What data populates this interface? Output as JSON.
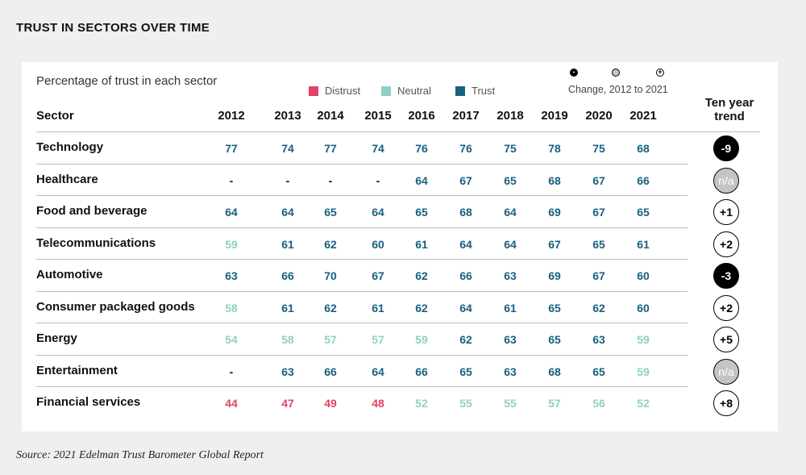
{
  "page": {
    "title": "TRUST IN SECTORS OVER TIME",
    "source": "Source: 2021 Edelman Trust Barometer Global Report"
  },
  "colors": {
    "distrust": "#e04367",
    "neutral": "#8fd0c6",
    "trust": "#17617e",
    "negative_fill": "#000000",
    "na_fill": "#c4c4c4"
  },
  "chart_data": {
    "type": "table",
    "title": "Percentage of trust in each sector",
    "legend": [
      {
        "key": "distrust",
        "label": "Distrust"
      },
      {
        "key": "neutral",
        "label": "Neutral"
      },
      {
        "key": "trust",
        "label": "Trust"
      }
    ],
    "change_legend_label": "Change, 2012 to 2021",
    "change_legend_symbols": [
      "-",
      "",
      "+"
    ],
    "sector_header": "Sector",
    "trend_header": [
      "Ten year",
      "trend"
    ],
    "years": [
      "2012",
      "2013",
      "2014",
      "2015",
      "2016",
      "2017",
      "2018",
      "2019",
      "2020",
      "2021"
    ],
    "rows": [
      {
        "sector": "Technology",
        "values": [
          77,
          74,
          77,
          74,
          76,
          76,
          75,
          78,
          75,
          68
        ],
        "categories": [
          "trust",
          "trust",
          "trust",
          "trust",
          "trust",
          "trust",
          "trust",
          "trust",
          "trust",
          "trust"
        ],
        "trend": "-9",
        "trend_kind": "negative"
      },
      {
        "sector": "Healthcare",
        "values": [
          null,
          null,
          null,
          null,
          64,
          67,
          65,
          68,
          67,
          66
        ],
        "categories": [
          "none",
          "none",
          "none",
          "none",
          "trust",
          "trust",
          "trust",
          "trust",
          "trust",
          "trust"
        ],
        "trend": "n/a",
        "trend_kind": "na"
      },
      {
        "sector": "Food and beverage",
        "values": [
          64,
          64,
          65,
          64,
          65,
          68,
          64,
          69,
          67,
          65
        ],
        "categories": [
          "trust",
          "trust",
          "trust",
          "trust",
          "trust",
          "trust",
          "trust",
          "trust",
          "trust",
          "trust"
        ],
        "trend": "+1",
        "trend_kind": "positive"
      },
      {
        "sector": "Telecommunications",
        "values": [
          59,
          61,
          62,
          60,
          61,
          64,
          64,
          67,
          65,
          61
        ],
        "categories": [
          "neutral",
          "trust",
          "trust",
          "trust",
          "trust",
          "trust",
          "trust",
          "trust",
          "trust",
          "trust"
        ],
        "trend": "+2",
        "trend_kind": "positive"
      },
      {
        "sector": "Automotive",
        "values": [
          63,
          66,
          70,
          67,
          62,
          66,
          63,
          69,
          67,
          60
        ],
        "categories": [
          "trust",
          "trust",
          "trust",
          "trust",
          "trust",
          "trust",
          "trust",
          "trust",
          "trust",
          "trust"
        ],
        "trend": "-3",
        "trend_kind": "negative"
      },
      {
        "sector": "Consumer packaged goods",
        "values": [
          58,
          61,
          62,
          61,
          62,
          64,
          61,
          65,
          62,
          60
        ],
        "categories": [
          "neutral",
          "trust",
          "trust",
          "trust",
          "trust",
          "trust",
          "trust",
          "trust",
          "trust",
          "trust"
        ],
        "trend": "+2",
        "trend_kind": "positive"
      },
      {
        "sector": "Energy",
        "values": [
          54,
          58,
          57,
          57,
          59,
          62,
          63,
          65,
          63,
          59
        ],
        "categories": [
          "neutral",
          "neutral",
          "neutral",
          "neutral",
          "neutral",
          "trust",
          "trust",
          "trust",
          "trust",
          "neutral"
        ],
        "trend": "+5",
        "trend_kind": "positive"
      },
      {
        "sector": "Entertainment",
        "values": [
          null,
          63,
          66,
          64,
          66,
          65,
          63,
          68,
          65,
          59
        ],
        "categories": [
          "none",
          "trust",
          "trust",
          "trust",
          "trust",
          "trust",
          "trust",
          "trust",
          "trust",
          "neutral"
        ],
        "trend": "n/a",
        "trend_kind": "na"
      },
      {
        "sector": "Financial services",
        "values": [
          44,
          47,
          49,
          48,
          52,
          55,
          55,
          57,
          56,
          52
        ],
        "categories": [
          "distrust",
          "distrust",
          "distrust",
          "distrust",
          "neutral",
          "neutral",
          "neutral",
          "neutral",
          "neutral",
          "neutral"
        ],
        "trend": "+8",
        "trend_kind": "positive"
      }
    ],
    "missing_value_text": "-"
  }
}
